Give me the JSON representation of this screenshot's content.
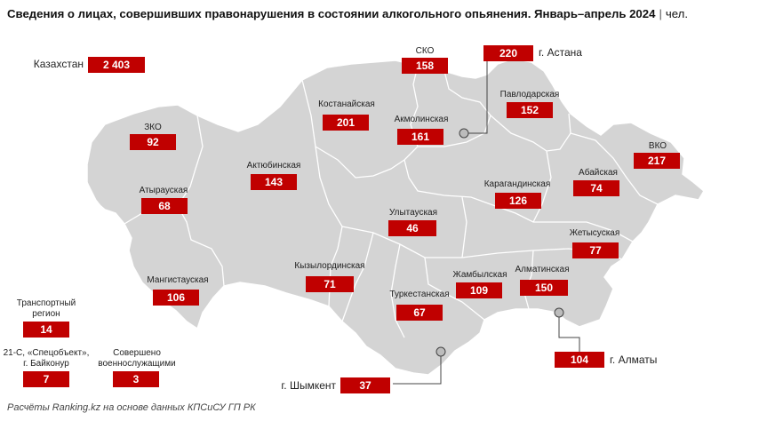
{
  "title": {
    "main": "Сведения о лицах, совершивших правонарушения в состоянии алкогольного опьянения. Январь–апрель 2024",
    "separator": "|",
    "unit": "чел."
  },
  "footer": "Расчёты Ranking.kz на основе данных КПСиСУ ГП РК",
  "colors": {
    "region_fill": "#d4d4d4",
    "border": "#ffffff",
    "value_box": "#c00000"
  },
  "kazakhstan": {
    "label": "Казахстан",
    "value": "2 403"
  },
  "regions": {
    "sko": {
      "label": "СКО",
      "value": "158"
    },
    "astana": {
      "label": "г. Астана",
      "value": "220"
    },
    "pavlodar": {
      "label": "Павлодарская",
      "value": "152"
    },
    "kostanay": {
      "label": "Костанайская",
      "value": "201"
    },
    "akmola": {
      "label": "Акмолинская",
      "value": "161"
    },
    "zko": {
      "label": "ЗКО",
      "value": "92"
    },
    "vko": {
      "label": "ВКО",
      "value": "217"
    },
    "aktobe": {
      "label": "Актюбинская",
      "value": "143"
    },
    "abai": {
      "label": "Абайская",
      "value": "74"
    },
    "atyrau": {
      "label": "Атырауская",
      "value": "68"
    },
    "karaganda": {
      "label": "Карагандинская",
      "value": "126"
    },
    "ulytau": {
      "label": "Улытауская",
      "value": "46"
    },
    "zhetisu": {
      "label": "Жетысуская",
      "value": "77"
    },
    "mangistau": {
      "label": "Мангистауская",
      "value": "106"
    },
    "kyzylorda": {
      "label": "Кызылординская",
      "value": "71"
    },
    "zhambyl": {
      "label": "Жамбылская",
      "value": "109"
    },
    "almaty_region": {
      "label": "Алматинская",
      "value": "150"
    },
    "turkestan": {
      "label": "Туркестанская",
      "value": "67"
    },
    "almaty_city": {
      "label": "г. Алматы",
      "value": "104"
    },
    "shymkent": {
      "label": "г. Шымкент",
      "value": "37"
    }
  },
  "extras": {
    "transport": {
      "label_line1": "Транспортный",
      "label_line2": "регион",
      "value": "14"
    },
    "baikonur": {
      "label_line1": "21-С, «Спецобъект»,",
      "label_line2": "г. Байконур",
      "value": "7"
    },
    "military": {
      "label_line1": "Совершено",
      "label_line2": "военнослужащими",
      "value": "3"
    }
  }
}
